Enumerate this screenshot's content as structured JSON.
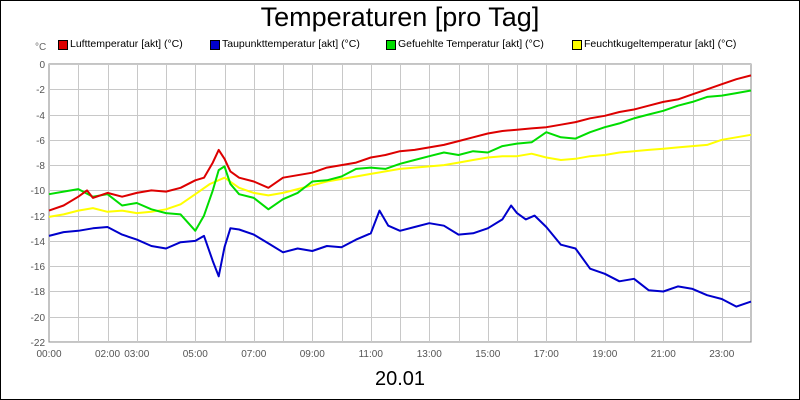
{
  "chart_data": {
    "type": "line",
    "title": "Temperaturen [pro Tag]",
    "xlabel": "20.01",
    "ylabel": "°C",
    "ylim": [
      -22,
      0
    ],
    "yticks": [
      0,
      -2,
      -4,
      -6,
      -8,
      -10,
      -12,
      -14,
      -16,
      -18,
      -20,
      -22
    ],
    "ytick_labels": [
      "0",
      "-2",
      "-4",
      "-6",
      "-8",
      "-10",
      "-12",
      "-14",
      "-16",
      "-18",
      "-20",
      "-22"
    ],
    "xlim": [
      0,
      24
    ],
    "xticks": [
      0,
      2,
      3,
      5,
      7,
      9,
      11,
      13,
      15,
      17,
      19,
      21,
      23
    ],
    "xtick_labels": [
      "00:00",
      "02:00",
      "03:00",
      "05:00",
      "07:00",
      "09:00",
      "11:00",
      "13:00",
      "15:00",
      "17:00",
      "19:00",
      "21:00",
      "23:00"
    ],
    "grid": true,
    "legend_position": "top",
    "series": [
      {
        "name": "Lufttemperatur [akt] (°C)",
        "color": "#dd0000",
        "x": [
          0,
          0.5,
          1,
          1.3,
          1.5,
          2,
          2.5,
          3,
          3.5,
          4,
          4.5,
          5,
          5.3,
          5.6,
          5.8,
          6,
          6.2,
          6.5,
          7,
          7.5,
          8,
          8.5,
          9,
          9.5,
          10,
          10.5,
          11,
          11.5,
          12,
          12.5,
          13,
          13.5,
          14,
          14.5,
          15,
          15.5,
          16,
          16.5,
          17,
          17.5,
          18,
          18.5,
          19,
          19.5,
          20,
          20.5,
          21,
          21.5,
          22,
          22.5,
          23,
          23.5,
          24
        ],
        "y": [
          -11.6,
          -11.2,
          -10.5,
          -10.0,
          -10.6,
          -10.2,
          -10.5,
          -10.2,
          -10.0,
          -10.1,
          -9.8,
          -9.2,
          -9.0,
          -7.8,
          -6.8,
          -7.5,
          -8.5,
          -9.0,
          -9.3,
          -9.8,
          -9.0,
          -8.8,
          -8.6,
          -8.2,
          -8.0,
          -7.8,
          -7.4,
          -7.2,
          -6.9,
          -6.8,
          -6.6,
          -6.4,
          -6.1,
          -5.8,
          -5.5,
          -5.3,
          -5.2,
          -5.1,
          -5.0,
          -4.8,
          -4.6,
          -4.3,
          -4.1,
          -3.8,
          -3.6,
          -3.3,
          -3.0,
          -2.8,
          -2.4,
          -2.0,
          -1.6,
          -1.2,
          -0.9
        ]
      },
      {
        "name": "Taupunkttemperatur [akt] (°C)",
        "color": "#0000cc",
        "x": [
          0,
          0.5,
          1,
          1.5,
          2,
          2.5,
          3,
          3.5,
          4,
          4.5,
          5,
          5.3,
          5.6,
          5.8,
          6,
          6.2,
          6.5,
          7,
          7.5,
          8,
          8.5,
          9,
          9.5,
          10,
          10.5,
          11,
          11.3,
          11.6,
          12,
          12.5,
          13,
          13.5,
          14,
          14.5,
          15,
          15.5,
          15.8,
          16,
          16.3,
          16.6,
          17,
          17.5,
          18,
          18.5,
          19,
          19.5,
          20,
          20.5,
          21,
          21.5,
          22,
          22.5,
          23,
          23.5,
          24
        ],
        "y": [
          -13.6,
          -13.3,
          -13.2,
          -13.0,
          -12.9,
          -13.5,
          -13.9,
          -14.4,
          -14.6,
          -14.1,
          -14.0,
          -13.6,
          -15.6,
          -16.8,
          -14.5,
          -13.0,
          -13.1,
          -13.5,
          -14.2,
          -14.9,
          -14.6,
          -14.8,
          -14.4,
          -14.5,
          -13.9,
          -13.4,
          -11.6,
          -12.8,
          -13.2,
          -12.9,
          -12.6,
          -12.8,
          -13.5,
          -13.4,
          -13.0,
          -12.3,
          -11.2,
          -11.8,
          -12.3,
          -12.0,
          -12.9,
          -14.3,
          -14.6,
          -16.2,
          -16.6,
          -17.2,
          -17.0,
          -17.9,
          -18.0,
          -17.6,
          -17.8,
          -18.3,
          -18.6,
          -19.2,
          -18.8
        ]
      },
      {
        "name": "Gefuehlte Temperatur [akt] (°C)",
        "color": "#00dd00",
        "x": [
          0,
          0.5,
          1,
          1.5,
          2,
          2.5,
          3,
          3.5,
          4,
          4.5,
          5,
          5.3,
          5.6,
          5.8,
          6,
          6.2,
          6.5,
          7,
          7.5,
          8,
          8.5,
          9,
          9.5,
          10,
          10.5,
          11,
          11.5,
          12,
          12.5,
          13,
          13.5,
          14,
          14.5,
          15,
          15.5,
          16,
          16.5,
          17,
          17.5,
          18,
          18.5,
          19,
          19.5,
          20,
          20.5,
          21,
          21.5,
          22,
          22.5,
          23,
          23.5,
          24
        ],
        "y": [
          -10.3,
          -10.1,
          -9.9,
          -10.5,
          -10.3,
          -11.2,
          -11.0,
          -11.5,
          -11.8,
          -11.9,
          -13.2,
          -12.0,
          -10.0,
          -8.4,
          -8.1,
          -9.5,
          -10.3,
          -10.6,
          -11.5,
          -10.7,
          -10.2,
          -9.3,
          -9.2,
          -8.9,
          -8.3,
          -8.2,
          -8.3,
          -7.9,
          -7.6,
          -7.3,
          -7.0,
          -7.2,
          -6.9,
          -7.0,
          -6.5,
          -6.3,
          -6.2,
          -5.4,
          -5.8,
          -5.9,
          -5.4,
          -5.0,
          -4.7,
          -4.3,
          -4.0,
          -3.7,
          -3.3,
          -3.0,
          -2.6,
          -2.5,
          -2.3,
          -2.1
        ]
      },
      {
        "name": "Feuchtkugeltemperatur [akt] (°C)",
        "color": "#ffff00",
        "x": [
          0,
          0.5,
          1,
          1.5,
          2,
          2.5,
          3,
          3.5,
          4,
          4.5,
          5,
          5.5,
          6,
          6.5,
          7,
          7.5,
          8,
          8.5,
          9,
          9.5,
          10,
          10.5,
          11,
          11.5,
          12,
          12.5,
          13,
          13.5,
          14,
          14.5,
          15,
          15.5,
          16,
          16.5,
          17,
          17.5,
          18,
          18.5,
          19,
          19.5,
          20,
          20.5,
          21,
          21.5,
          22,
          22.5,
          23,
          23.5,
          24
        ],
        "y": [
          -12.1,
          -11.9,
          -11.6,
          -11.4,
          -11.7,
          -11.6,
          -11.8,
          -11.7,
          -11.5,
          -11.1,
          -10.3,
          -9.5,
          -9.0,
          -9.8,
          -10.2,
          -10.4,
          -10.2,
          -9.9,
          -9.6,
          -9.3,
          -9.1,
          -8.9,
          -8.7,
          -8.5,
          -8.3,
          -8.2,
          -8.1,
          -8.0,
          -7.8,
          -7.6,
          -7.4,
          -7.3,
          -7.3,
          -7.1,
          -7.4,
          -7.6,
          -7.5,
          -7.3,
          -7.2,
          -7.0,
          -6.9,
          -6.8,
          -6.7,
          -6.6,
          -6.5,
          -6.4,
          -6.0,
          -5.8,
          -5.6
        ]
      }
    ]
  }
}
